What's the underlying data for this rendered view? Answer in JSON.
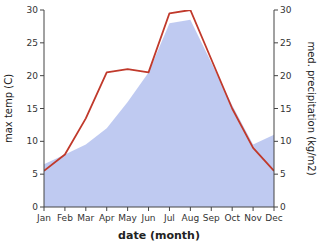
{
  "chart_data": {
    "type": "line",
    "categories": [
      "Jan",
      "Feb",
      "Mar",
      "Apr",
      "May",
      "Jun",
      "Jul",
      "Aug",
      "Sep",
      "Oct",
      "Nov",
      "Dec"
    ],
    "xlabel": "date (month)",
    "ylabel": "max temp (C)",
    "y2label": "med. precipitation (kg/m2)",
    "series": [
      {
        "type": "area",
        "axis": "y2",
        "color": "#b8c4ef",
        "values": [
          6.5,
          8.0,
          9.5,
          12.0,
          16.0,
          20.5,
          28.0,
          28.5,
          22.0,
          15.5,
          9.5,
          11.0
        ]
      },
      {
        "type": "line",
        "color": "#c0392b",
        "values": [
          5.5,
          8.0,
          13.5,
          20.5,
          21.0,
          20.5,
          29.5,
          30.0,
          22.5,
          15.0,
          9.0,
          5.5
        ]
      }
    ],
    "ylim": [
      0,
      30
    ],
    "yticks": [
      0,
      5,
      10,
      15,
      20,
      25,
      30
    ],
    "y2lim": [
      0,
      30
    ],
    "y2ticks": [
      0,
      5,
      10,
      15,
      20,
      25,
      30
    ],
    "grid": false
  }
}
